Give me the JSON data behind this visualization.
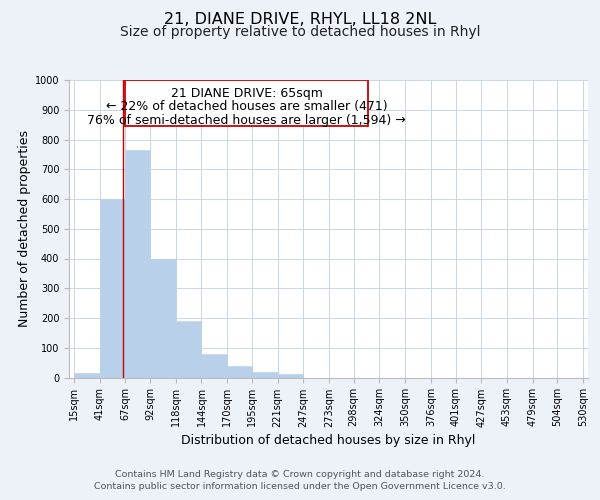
{
  "title": "21, DIANE DRIVE, RHYL, LL18 2NL",
  "subtitle": "Size of property relative to detached houses in Rhyl",
  "xlabel": "Distribution of detached houses by size in Rhyl",
  "ylabel": "Number of detached properties",
  "footer_line1": "Contains HM Land Registry data © Crown copyright and database right 2024.",
  "footer_line2": "Contains public sector information licensed under the Open Government Licence v3.0.",
  "annotation_line1": "21 DIANE DRIVE: 65sqm",
  "annotation_line2": "← 22% of detached houses are smaller (471)",
  "annotation_line3": "76% of semi-detached houses are larger (1,594) →",
  "bar_left_edges": [
    15,
    41,
    67,
    92,
    118,
    144,
    170,
    195,
    221,
    247,
    273,
    298,
    324,
    350,
    376,
    401,
    427,
    453,
    479,
    504
  ],
  "bar_heights": [
    15,
    600,
    765,
    400,
    190,
    78,
    40,
    18,
    12,
    0,
    0,
    0,
    0,
    0,
    0,
    0,
    0,
    0,
    0,
    0
  ],
  "bar_widths": [
    26,
    26,
    25,
    26,
    26,
    26,
    25,
    26,
    26,
    26,
    25,
    26,
    26,
    26,
    25,
    26,
    26,
    26,
    25,
    26
  ],
  "x_tick_labels": [
    "15sqm",
    "41sqm",
    "67sqm",
    "92sqm",
    "118sqm",
    "144sqm",
    "170sqm",
    "195sqm",
    "221sqm",
    "247sqm",
    "273sqm",
    "298sqm",
    "324sqm",
    "350sqm",
    "376sqm",
    "401sqm",
    "427sqm",
    "453sqm",
    "479sqm",
    "504sqm",
    "530sqm"
  ],
  "x_tick_positions": [
    15,
    41,
    67,
    92,
    118,
    144,
    170,
    195,
    221,
    247,
    273,
    298,
    324,
    350,
    376,
    401,
    427,
    453,
    479,
    504,
    530
  ],
  "bar_color": "#b8d0ea",
  "bar_edge_color": "#b8d0ea",
  "red_line_x": 65,
  "red_line_color": "#cc0000",
  "annotation_box_edge_color": "#cc0000",
  "ylim": [
    0,
    1000
  ],
  "xlim": [
    10,
    535
  ],
  "bg_color": "#edf1f8",
  "plot_bg_color": "#ffffff",
  "grid_color": "#c8d4e8",
  "title_fontsize": 11.5,
  "subtitle_fontsize": 10,
  "axis_label_fontsize": 9,
  "tick_fontsize": 7,
  "footer_fontsize": 6.8,
  "annotation_fontsize": 9
}
